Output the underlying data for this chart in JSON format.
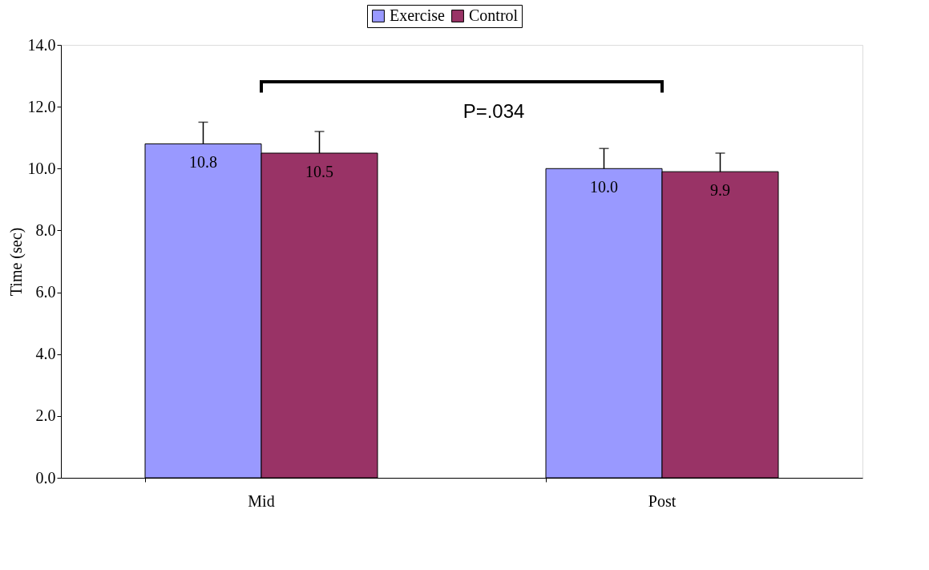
{
  "chart_data": {
    "type": "bar",
    "ylabel": "Time (sec)",
    "categories": [
      "Mid",
      "Post"
    ],
    "series": [
      {
        "name": "Exercise",
        "color": "#9999ff",
        "values": [
          10.8,
          10.0
        ],
        "errors": [
          0.7,
          0.65
        ],
        "value_labels": [
          "10.8",
          "10.0"
        ]
      },
      {
        "name": "Control",
        "color": "#993366",
        "values": [
          10.5,
          9.9
        ],
        "errors": [
          0.7,
          0.6
        ],
        "value_labels": [
          "10.5",
          "9.9"
        ]
      }
    ],
    "ylim": [
      0,
      14
    ],
    "yticks": [
      {
        "value": 0,
        "label": "0.0"
      },
      {
        "value": 2,
        "label": "2.0"
      },
      {
        "value": 4,
        "label": "4.0"
      },
      {
        "value": 6,
        "label": "6.0"
      },
      {
        "value": 8,
        "label": "8.0"
      },
      {
        "value": 10,
        "label": "10.0"
      },
      {
        "value": 12,
        "label": "12.0"
      },
      {
        "value": 14,
        "label": "14.0"
      }
    ],
    "annotations": [
      "P=.034"
    ],
    "grid": false,
    "legend": "top"
  }
}
